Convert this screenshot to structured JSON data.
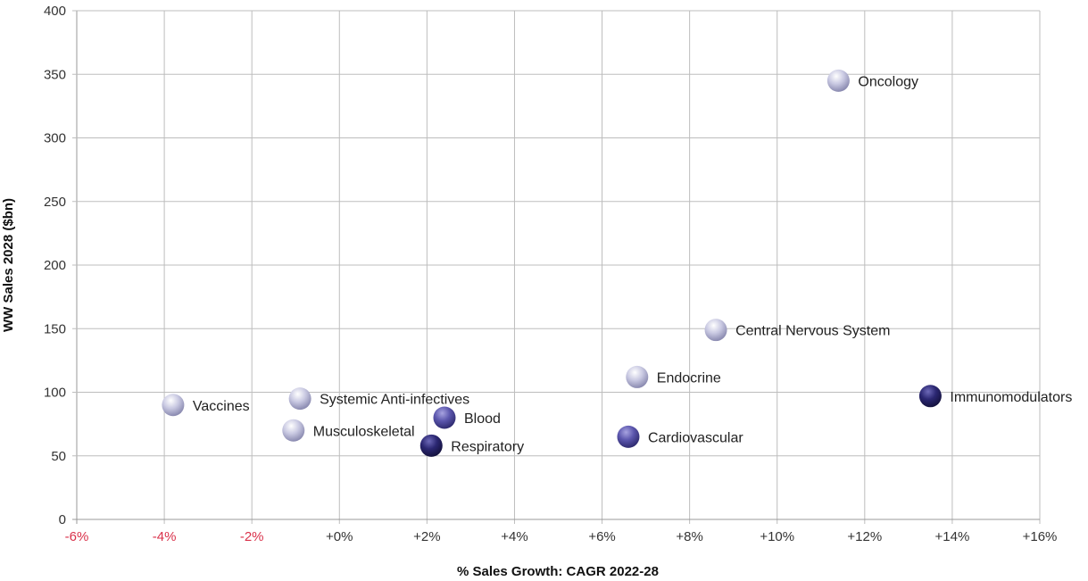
{
  "chart_data": {
    "type": "scatter",
    "title": "",
    "xlabel": "% Sales Growth: CAGR 2022-28",
    "ylabel": "WW Sales 2028 ($bn)",
    "xlim": [
      -6,
      16
    ],
    "ylim": [
      0,
      400
    ],
    "grid": true,
    "x_ticks": [
      -6,
      -4,
      -2,
      0,
      2,
      4,
      6,
      8,
      10,
      12,
      14,
      16
    ],
    "x_tick_labels": [
      "-6%",
      "-4%",
      "-2%",
      "+0%",
      "+2%",
      "+4%",
      "+6%",
      "+8%",
      "+10%",
      "+12%",
      "+14%",
      "+16%"
    ],
    "y_ticks": [
      0,
      50,
      100,
      150,
      200,
      250,
      300,
      350,
      400
    ],
    "y_tick_labels": [
      "0",
      "50",
      "100",
      "150",
      "200",
      "250",
      "300",
      "350",
      "400"
    ],
    "colors": {
      "light": "#c9c9e2",
      "medium": "#5b56ad",
      "dark": "#2b2772",
      "negative_tick": "#d9314a",
      "tick": "#333333",
      "grid": "#bdbdbd"
    },
    "points": [
      {
        "label": "Oncology",
        "x": 11.4,
        "y": 345,
        "shade": "light"
      },
      {
        "label": "Central Nervous System",
        "x": 8.6,
        "y": 149,
        "shade": "light"
      },
      {
        "label": "Endocrine",
        "x": 6.8,
        "y": 112,
        "shade": "light"
      },
      {
        "label": "Immunomodulators",
        "x": 13.5,
        "y": 97,
        "shade": "dark"
      },
      {
        "label": "Vaccines",
        "x": -3.8,
        "y": 90,
        "shade": "light"
      },
      {
        "label": "Systemic Anti-infectives",
        "x": -0.9,
        "y": 95,
        "shade": "light"
      },
      {
        "label": "Musculoskeletal",
        "x": -1.05,
        "y": 70,
        "shade": "light"
      },
      {
        "label": "Blood",
        "x": 2.4,
        "y": 80,
        "shade": "medium"
      },
      {
        "label": "Respiratory",
        "x": 2.1,
        "y": 58,
        "shade": "dark"
      },
      {
        "label": "Cardiovascular",
        "x": 6.6,
        "y": 65,
        "shade": "medium"
      }
    ]
  }
}
